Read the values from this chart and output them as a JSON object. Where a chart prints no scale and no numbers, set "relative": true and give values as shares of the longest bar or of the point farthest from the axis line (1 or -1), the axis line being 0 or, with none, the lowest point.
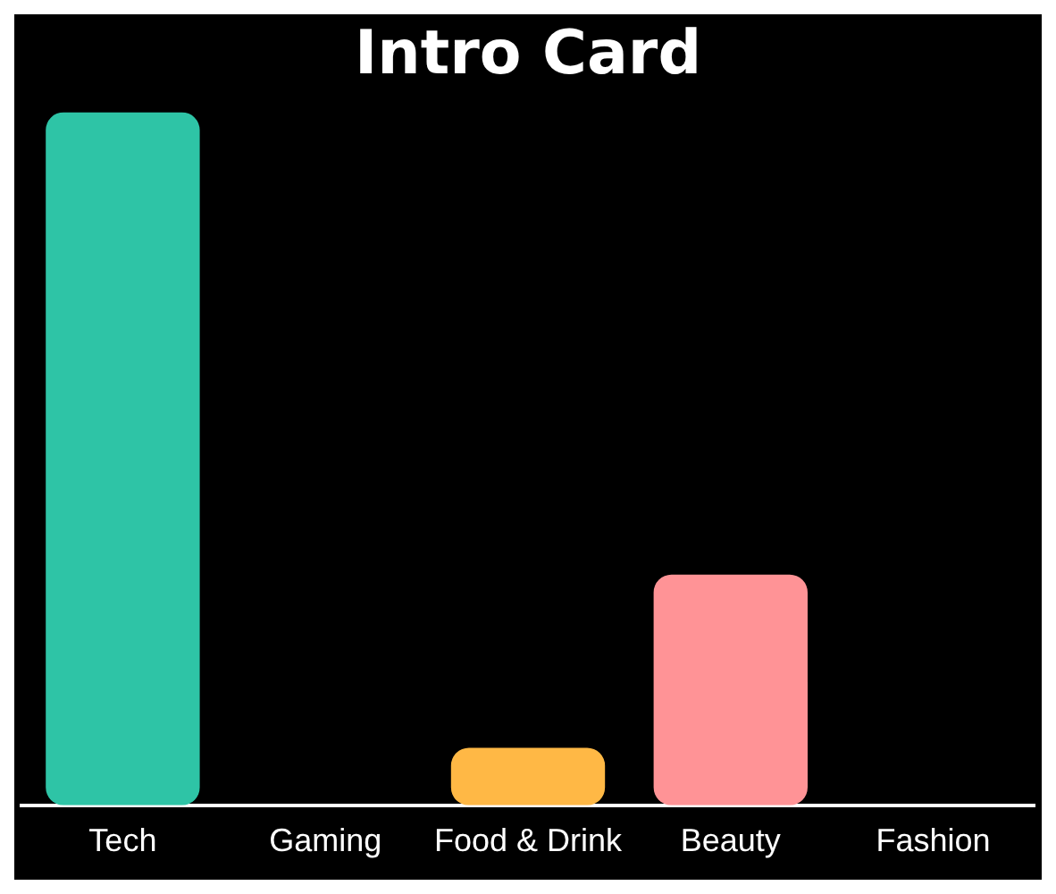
{
  "chart_data": {
    "type": "bar",
    "title": "Intro Card",
    "relative": true,
    "categories": [
      "Tech",
      "Gaming",
      "Food & Drink",
      "Beauty",
      "Fashion"
    ],
    "values": [
      1,
      0,
      0.083,
      0.333,
      0
    ],
    "colors": [
      "#2ec4a6",
      "#ffffff",
      "#ffb845",
      "#ff9396",
      "#ffffff"
    ],
    "legend": false
  }
}
